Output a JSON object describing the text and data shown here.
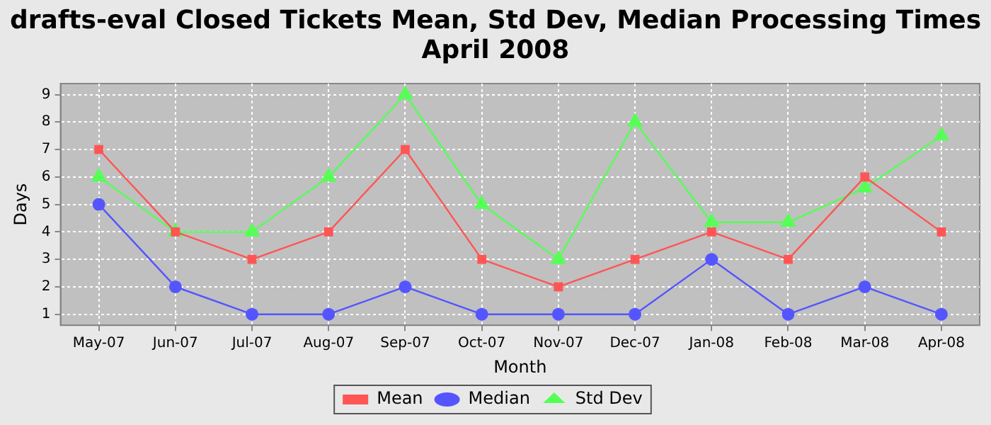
{
  "chart_data": {
    "type": "line",
    "title": "drafts-eval Closed Tickets Mean, Std Dev, Median Processing Times April 2008",
    "xlabel": "Month",
    "ylabel": "Days",
    "categories": [
      "May-07",
      "Jun-07",
      "Jul-07",
      "Aug-07",
      "Sep-07",
      "Oct-07",
      "Nov-07",
      "Dec-07",
      "Jan-08",
      "Feb-08",
      "Mar-08",
      "Apr-08"
    ],
    "series": [
      {
        "name": "Mean",
        "color": "#ff5555",
        "marker": "square",
        "values": [
          7,
          4,
          3,
          4,
          7,
          3,
          2,
          3,
          4,
          3,
          6,
          4
        ]
      },
      {
        "name": "Median",
        "color": "#5555ff",
        "marker": "circle",
        "values": [
          5,
          2,
          1,
          1,
          2,
          1,
          1,
          1,
          3,
          1,
          2,
          1
        ]
      },
      {
        "name": "Std Dev",
        "color": "#55ff55",
        "marker": "triangle",
        "values": [
          6,
          4,
          4,
          6,
          9,
          5,
          3,
          8,
          4.35,
          4.35,
          5.6,
          7.5
        ]
      }
    ],
    "ylim": [
      0.6,
      9.4
    ],
    "yticks": [
      1,
      2,
      3,
      4,
      5,
      6,
      7,
      8,
      9
    ],
    "grid": true,
    "legend": "bottom",
    "line_style": "solid"
  }
}
